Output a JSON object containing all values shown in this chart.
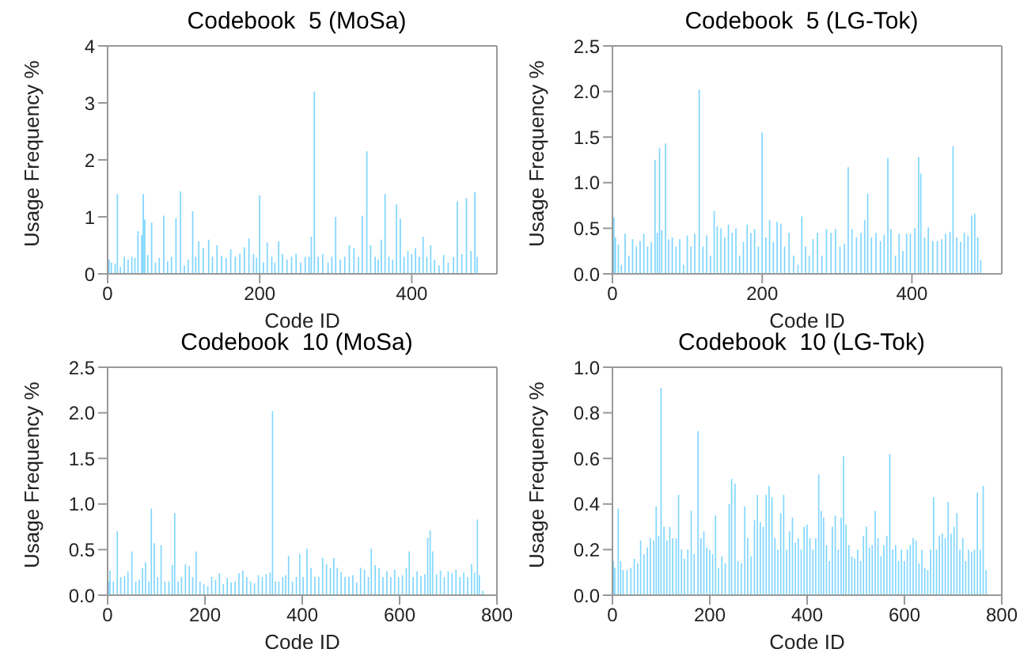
{
  "chart_data": [
    {
      "type": "bar",
      "title": "Codebook  5 (MoSa)",
      "xlabel": "Code ID",
      "ylabel": "Usage Frequency %",
      "xlim": [
        0,
        512
      ],
      "xticks": [
        0,
        200,
        400
      ],
      "ylim": [
        0,
        4
      ],
      "yticks": [
        0,
        1,
        2,
        3,
        4
      ],
      "x": [
        2,
        5,
        10,
        13,
        17,
        22,
        27,
        32,
        36,
        40,
        45,
        47,
        49,
        53,
        58,
        63,
        68,
        74,
        79,
        84,
        90,
        96,
        101,
        106,
        112,
        116,
        120,
        126,
        133,
        138,
        144,
        150,
        156,
        162,
        168,
        174,
        180,
        186,
        192,
        196,
        200,
        205,
        210,
        216,
        220,
        225,
        230,
        236,
        242,
        248,
        254,
        260,
        265,
        268,
        272,
        277,
        283,
        290,
        295,
        300,
        306,
        312,
        318,
        324,
        330,
        335,
        341,
        346,
        352,
        356,
        360,
        365,
        370,
        375,
        380,
        385,
        390,
        395,
        400,
        405,
        410,
        415,
        420,
        425,
        430,
        436,
        442,
        448,
        455,
        460,
        466,
        472,
        478,
        483,
        486
      ],
      "series": [
        {
          "color": "#80d6ff",
          "values": [
            0.25,
            0.2,
            0.18,
            1.4,
            0.12,
            0.3,
            0.25,
            0.3,
            0.28,
            0.75,
            0.68,
            1.4,
            0.95,
            0.33,
            0.9,
            0.2,
            0.28,
            1.02,
            0.22,
            0.3,
            0.98,
            1.45,
            0.15,
            0.25,
            1.1,
            0.3,
            0.57,
            0.45,
            0.6,
            0.3,
            0.5,
            0.32,
            0.28,
            0.43,
            0.3,
            0.35,
            0.47,
            0.62,
            0.35,
            0.28,
            1.38,
            0.2,
            0.55,
            0.3,
            0.2,
            0.57,
            0.35,
            0.25,
            0.3,
            0.35,
            0.2,
            0.3,
            0.3,
            0.65,
            3.2,
            0.3,
            0.35,
            0.2,
            0.3,
            1.0,
            0.25,
            0.3,
            0.5,
            0.45,
            0.3,
            1.02,
            2.15,
            0.5,
            0.3,
            0.25,
            0.6,
            1.4,
            0.3,
            0.25,
            1.22,
            0.97,
            0.3,
            0.4,
            0.35,
            0.45,
            0.3,
            0.65,
            0.3,
            0.5,
            0.25,
            0.15,
            0.33,
            0.2,
            0.3,
            1.27,
            0.35,
            1.33,
            0.4,
            1.43,
            0.3
          ]
        }
      ]
    },
    {
      "type": "bar",
      "title": "Codebook  5 (LG-Tok)",
      "xlabel": "Code ID",
      "ylabel": "Usage Frequency %",
      "xlim": [
        0,
        520
      ],
      "xticks": [
        0,
        200,
        400
      ],
      "ylim": [
        0,
        2.5
      ],
      "yticks": [
        {
          "value": 0,
          "label": "0.0"
        },
        0.5,
        {
          "value": 1,
          "label": "1.0"
        },
        1.5,
        {
          "value": 2,
          "label": "2.0"
        },
        2.5
      ],
      "x": [
        2,
        4,
        8,
        12,
        17,
        22,
        27,
        32,
        37,
        42,
        47,
        52,
        57,
        60,
        63,
        66,
        71,
        75,
        80,
        85,
        90,
        95,
        100,
        105,
        110,
        116,
        121,
        126,
        131,
        136,
        140,
        145,
        150,
        155,
        160,
        165,
        170,
        175,
        180,
        185,
        190,
        195,
        200,
        205,
        210,
        215,
        220,
        225,
        230,
        236,
        242,
        248,
        253,
        258,
        263,
        268,
        274,
        280,
        286,
        292,
        298,
        304,
        310,
        315,
        320,
        326,
        332,
        337,
        341,
        346,
        352,
        358,
        363,
        368,
        372,
        378,
        383,
        388,
        393,
        398,
        404,
        409,
        412,
        417,
        422,
        428,
        434,
        440,
        445,
        451,
        455,
        460,
        465,
        470,
        475,
        480,
        484,
        488,
        492
      ],
      "series": [
        {
          "color": "#80d6ff",
          "values": [
            0.62,
            0.4,
            0.32,
            0.1,
            0.44,
            0.2,
            0.38,
            0.3,
            0.36,
            0.44,
            0.3,
            0.35,
            1.25,
            0.45,
            1.38,
            0.48,
            1.43,
            0.38,
            0.4,
            0.3,
            0.38,
            0.1,
            0.42,
            0.3,
            0.44,
            2.02,
            0.3,
            0.42,
            0.2,
            0.69,
            0.52,
            0.5,
            0.4,
            0.54,
            0.45,
            0.5,
            0.2,
            0.35,
            0.54,
            0.45,
            0.49,
            0.3,
            1.55,
            0.4,
            0.59,
            0.35,
            0.57,
            0.55,
            0.3,
            0.45,
            0.2,
            0.1,
            0.63,
            0.3,
            0.2,
            0.38,
            0.45,
            0.2,
            0.49,
            0.45,
            0.49,
            0.3,
            0.33,
            1.17,
            0.49,
            0.4,
            0.45,
            0.59,
            0.88,
            0.4,
            0.45,
            0.36,
            0.43,
            1.27,
            0.49,
            0.2,
            0.44,
            0.25,
            0.44,
            0.44,
            0.5,
            1.28,
            1.1,
            0.4,
            0.51,
            0.36,
            0.36,
            0.38,
            0.44,
            0.46,
            1.4,
            0.4,
            0.35,
            0.45,
            0.42,
            0.64,
            0.66,
            0.4,
            0.15
          ]
        }
      ]
    },
    {
      "type": "bar",
      "title": "Codebook  10 (MoSa)",
      "xlabel": "Code ID",
      "ylabel": "Usage Frequency %",
      "xlim": [
        0,
        800
      ],
      "xticks": [
        0,
        200,
        400,
        600,
        800
      ],
      "ylim": [
        0,
        2.5
      ],
      "yticks": [
        {
          "value": 0,
          "label": "0.0"
        },
        0.5,
        {
          "value": 1,
          "label": "1.0"
        },
        1.5,
        {
          "value": 2,
          "label": "2.0"
        },
        2.5
      ],
      "x": [
        2,
        5,
        12,
        20,
        27,
        35,
        42,
        50,
        58,
        65,
        72,
        78,
        85,
        90,
        96,
        103,
        110,
        118,
        126,
        133,
        138,
        145,
        152,
        160,
        168,
        175,
        182,
        190,
        198,
        206,
        214,
        222,
        230,
        238,
        246,
        254,
        262,
        270,
        278,
        286,
        294,
        302,
        310,
        318,
        326,
        334,
        339,
        345,
        352,
        360,
        366,
        372,
        380,
        388,
        395,
        402,
        410,
        418,
        426,
        434,
        442,
        450,
        458,
        465,
        472,
        480,
        488,
        496,
        504,
        512,
        520,
        528,
        536,
        542,
        550,
        558,
        566,
        574,
        582,
        590,
        598,
        606,
        614,
        620,
        628,
        636,
        644,
        652,
        658,
        663,
        668,
        676,
        684,
        692,
        700,
        708,
        716,
        724,
        732,
        740,
        748,
        754,
        760,
        764,
        771
      ],
      "series": [
        {
          "color": "#80d6ff",
          "values": [
            0.15,
            0.27,
            0.15,
            0.7,
            0.2,
            0.21,
            0.26,
            0.48,
            0.15,
            0.17,
            0.3,
            0.36,
            0.15,
            0.95,
            0.57,
            0.2,
            0.55,
            0.15,
            0.15,
            0.33,
            0.9,
            0.15,
            0.2,
            0.34,
            0.32,
            0.2,
            0.48,
            0.15,
            0.12,
            0.1,
            0.2,
            0.17,
            0.24,
            0.12,
            0.19,
            0.14,
            0.15,
            0.24,
            0.27,
            0.2,
            0.15,
            0.13,
            0.22,
            0.2,
            0.23,
            0.25,
            2.02,
            0.15,
            0.15,
            0.2,
            0.22,
            0.43,
            0.15,
            0.2,
            0.45,
            0.2,
            0.51,
            0.3,
            0.2,
            0.2,
            0.41,
            0.34,
            0.3,
            0.41,
            0.3,
            0.25,
            0.2,
            0.2,
            0.22,
            0.14,
            0.3,
            0.28,
            0.2,
            0.51,
            0.33,
            0.3,
            0.2,
            0.26,
            0.2,
            0.28,
            0.2,
            0.22,
            0.3,
            0.48,
            0.2,
            0.26,
            0.21,
            0.23,
            0.63,
            0.71,
            0.48,
            0.23,
            0.27,
            0.2,
            0.26,
            0.24,
            0.28,
            0.2,
            0.25,
            0.2,
            0.34,
            0.25,
            0.83,
            0.22,
            0.05
          ]
        }
      ]
    },
    {
      "type": "bar",
      "title": "Codebook  10 (LG-Tok)",
      "xlabel": "Code ID",
      "ylabel": "Usage Frequency %",
      "xlim": [
        0,
        800
      ],
      "xticks": [
        0,
        200,
        400,
        600,
        800
      ],
      "ylim": [
        0,
        1
      ],
      "yticks": [
        {
          "value": 0,
          "label": "0.0"
        },
        0.2,
        0.4,
        0.6,
        0.8,
        {
          "value": 1,
          "label": "1.0"
        }
      ],
      "x": [
        2,
        5,
        12,
        17,
        22,
        30,
        38,
        45,
        52,
        58,
        65,
        72,
        78,
        85,
        90,
        95,
        100,
        106,
        112,
        118,
        124,
        131,
        136,
        142,
        148,
        155,
        162,
        168,
        176,
        182,
        188,
        194,
        200,
        206,
        212,
        218,
        225,
        232,
        240,
        245,
        252,
        258,
        265,
        272,
        278,
        285,
        292,
        298,
        304,
        310,
        316,
        322,
        328,
        334,
        340,
        346,
        352,
        358,
        364,
        370,
        376,
        382,
        388,
        394,
        400,
        406,
        412,
        418,
        424,
        429,
        434,
        440,
        446,
        452,
        458,
        464,
        470,
        475,
        480,
        486,
        492,
        498,
        504,
        510,
        516,
        522,
        528,
        534,
        540,
        546,
        552,
        558,
        564,
        570,
        576,
        582,
        588,
        594,
        600,
        606,
        612,
        618,
        624,
        630,
        636,
        642,
        648,
        654,
        660,
        666,
        672,
        678,
        684,
        690,
        696,
        702,
        708,
        714,
        720,
        726,
        732,
        738,
        744,
        750,
        756,
        762,
        768
      ],
      "series": [
        {
          "color": "#80d6ff",
          "values": [
            0.15,
            0.12,
            0.38,
            0.15,
            0.11,
            0.11,
            0.12,
            0.16,
            0.14,
            0.24,
            0.18,
            0.21,
            0.25,
            0.24,
            0.39,
            0.26,
            0.91,
            0.3,
            0.24,
            0.3,
            0.25,
            0.25,
            0.44,
            0.2,
            0.16,
            0.2,
            0.37,
            0.18,
            0.72,
            0.25,
            0.28,
            0.21,
            0.2,
            0.18,
            0.35,
            0.12,
            0.17,
            0.14,
            0.4,
            0.51,
            0.49,
            0.15,
            0.14,
            0.39,
            0.25,
            0.17,
            0.33,
            0.44,
            0.32,
            0.3,
            0.44,
            0.48,
            0.43,
            0.25,
            0.2,
            0.36,
            0.44,
            0.2,
            0.28,
            0.34,
            0.23,
            0.25,
            0.2,
            0.3,
            0.31,
            0.25,
            0.2,
            0.25,
            0.53,
            0.37,
            0.34,
            0.22,
            0.15,
            0.3,
            0.35,
            0.2,
            0.34,
            0.61,
            0.31,
            0.22,
            0.17,
            0.16,
            0.2,
            0.15,
            0.26,
            0.3,
            0.21,
            0.22,
            0.37,
            0.25,
            0.17,
            0.22,
            0.26,
            0.62,
            0.2,
            0.22,
            0.15,
            0.2,
            0.15,
            0.2,
            0.22,
            0.25,
            0.24,
            0.14,
            0.2,
            0.12,
            0.11,
            0.2,
            0.43,
            0.2,
            0.26,
            0.27,
            0.25,
            0.41,
            0.27,
            0.3,
            0.36,
            0.2,
            0.25,
            0.15,
            0.2,
            0.19,
            0.2,
            0.45,
            0.2,
            0.48,
            0.11
          ]
        }
      ]
    }
  ]
}
